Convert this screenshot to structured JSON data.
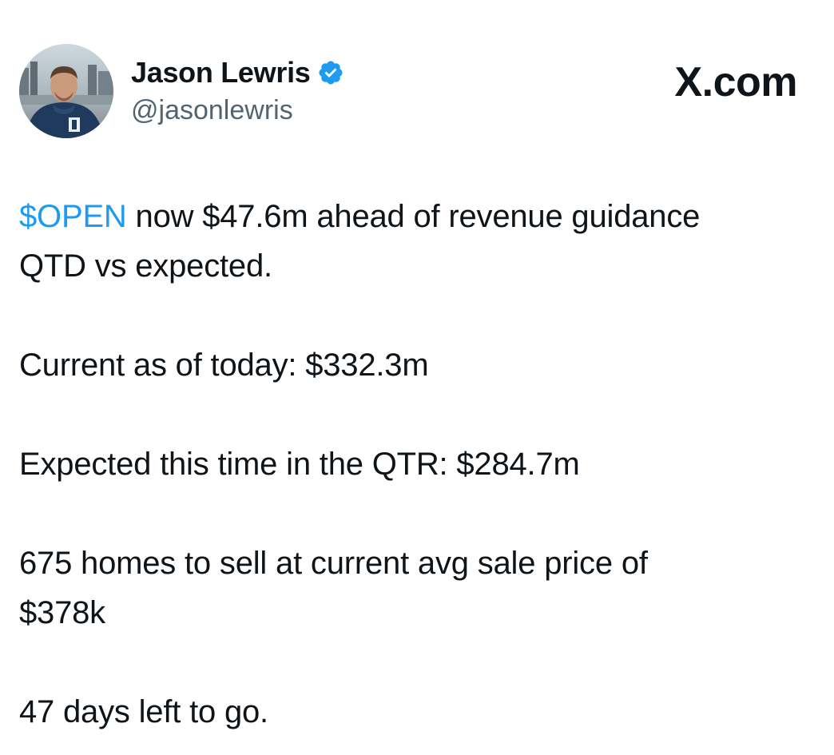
{
  "author": {
    "display_name": "Jason Lewris",
    "handle": "@jasonlewris",
    "verified": true,
    "verified_color": "#1d9bf0"
  },
  "brand": {
    "label": "X.com"
  },
  "tweet": {
    "cashtag": "$OPEN",
    "line1_rest": " now $47.6m ahead of revenue guidance",
    "line2": "QTD vs expected.",
    "current": "Current as of today: $332.3m",
    "expected": "Expected this time in the QTR: $284.7m",
    "homes_line1": "675 homes to sell at current avg sale price of",
    "homes_line2": "$378k",
    "days_left": "47 days left to go."
  },
  "colors": {
    "text": "#0f1419",
    "secondary": "#536471",
    "link": "#1d9bf0"
  }
}
